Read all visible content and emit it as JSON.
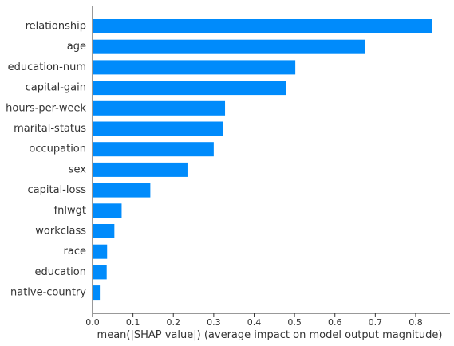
{
  "chart_data": {
    "type": "bar",
    "orientation": "horizontal",
    "categories": [
      "relationship",
      "age",
      "education-num",
      "capital-gain",
      "hours-per-week",
      "marital-status",
      "occupation",
      "sex",
      "capital-loss",
      "fnlwgt",
      "workclass",
      "race",
      "education",
      "native-country"
    ],
    "values": [
      0.84,
      0.675,
      0.502,
      0.48,
      0.328,
      0.323,
      0.3,
      0.235,
      0.143,
      0.072,
      0.054,
      0.036,
      0.035,
      0.018
    ],
    "xlabel": "mean(|SHAP value|) (average impact on model output magnitude)",
    "ylabel": "",
    "xlim": [
      0,
      0.885
    ],
    "xticks": [
      0.0,
      0.1,
      0.2,
      0.3,
      0.4,
      0.5,
      0.6,
      0.7,
      0.8
    ],
    "xtick_labels": [
      "0.0",
      "0.1",
      "0.2",
      "0.3",
      "0.4",
      "0.5",
      "0.6",
      "0.7",
      "0.8"
    ],
    "bar_color": "#008bfb",
    "axis_color": "#333333",
    "grid": false,
    "legend": "none"
  }
}
